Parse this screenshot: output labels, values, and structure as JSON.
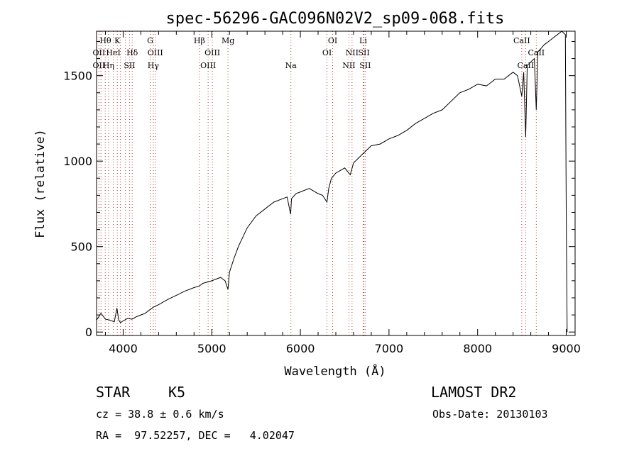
{
  "chart_data": {
    "type": "line",
    "title": "spec-56296-GAC096N02V2_sp09-068.fits",
    "xlabel": "Wavelength (Å)",
    "ylabel": "Flux (relative)",
    "xlim": [
      3700,
      9100
    ],
    "ylim": [
      -20,
      1760
    ],
    "xticks": [
      4000,
      5000,
      6000,
      7000,
      8000,
      9000
    ],
    "xtick_labels": [
      "4000",
      "5000",
      "6000",
      "7000",
      "8000",
      "9000"
    ],
    "yticks": [
      0,
      500,
      1000,
      1500
    ],
    "ytick_labels": [
      "0",
      "500",
      "1000",
      "1500"
    ],
    "series": [
      {
        "x": [
          3700,
          3750,
          3800,
          3850,
          3900,
          3930,
          3950,
          3970,
          4000,
          4050,
          4100,
          4150,
          4200,
          4250,
          4300,
          4340,
          4400,
          4500,
          4600,
          4700,
          4800,
          4861,
          4900,
          5000,
          5100,
          5150,
          5183,
          5200,
          5250,
          5300,
          5400,
          5500,
          5600,
          5700,
          5800,
          5850,
          5890,
          5900,
          5950,
          6000,
          6100,
          6200,
          6250,
          6300,
          6320,
          6350,
          6400,
          6500,
          6563,
          6600,
          6700,
          6800,
          6900,
          7000,
          7100,
          7200,
          7300,
          7400,
          7500,
          7600,
          7700,
          7800,
          7900,
          8000,
          8100,
          8200,
          8300,
          8400,
          8450,
          8498,
          8520,
          8542,
          8560,
          8600,
          8640,
          8662,
          8680,
          8700,
          8750,
          8800,
          8850,
          8900,
          8950,
          8990,
          9000,
          9010
        ],
        "y": [
          70,
          110,
          75,
          70,
          60,
          140,
          70,
          55,
          65,
          80,
          75,
          90,
          100,
          110,
          130,
          145,
          160,
          190,
          215,
          240,
          260,
          270,
          285,
          300,
          320,
          300,
          250,
          350,
          430,
          500,
          610,
          680,
          720,
          760,
          780,
          790,
          690,
          780,
          810,
          820,
          840,
          810,
          800,
          760,
          840,
          900,
          930,
          960,
          920,
          990,
          1040,
          1090,
          1100,
          1130,
          1150,
          1180,
          1220,
          1250,
          1280,
          1300,
          1350,
          1400,
          1420,
          1450,
          1440,
          1480,
          1480,
          1520,
          1500,
          1380,
          1520,
          1140,
          1560,
          1580,
          1600,
          1300,
          1640,
          1650,
          1680,
          1700,
          1720,
          1740,
          1760,
          1740,
          700,
          0
        ]
      }
    ],
    "line_markers": {
      "wavelengths": [
        3727,
        3750,
        3798,
        3835,
        3889,
        3934,
        3968,
        4026,
        4072,
        4102,
        4305,
        4340,
        4363,
        4861,
        4959,
        5007,
        5183,
        5893,
        6300,
        6364,
        6548,
        6583,
        6708,
        6717,
        6731,
        8498,
        8542,
        8662
      ],
      "labels": [
        {
          "text": "Hθ",
          "wl": 3800,
          "row": 0
        },
        {
          "text": "K",
          "wl": 3934,
          "row": 0
        },
        {
          "text": "OII",
          "wl": 3727,
          "row": 1
        },
        {
          "text": "HeI",
          "wl": 3889,
          "row": 1
        },
        {
          "text": "Hδ",
          "wl": 4102,
          "row": 1
        },
        {
          "text": "OII",
          "wl": 3727,
          "row": 2
        },
        {
          "text": "Hη",
          "wl": 3835,
          "row": 2
        },
        {
          "text": "SII",
          "wl": 4072,
          "row": 2
        },
        {
          "text": "G",
          "wl": 4305,
          "row": 0
        },
        {
          "text": "OIII",
          "wl": 4363,
          "row": 1
        },
        {
          "text": "Hγ",
          "wl": 4340,
          "row": 2
        },
        {
          "text": "Hβ",
          "wl": 4861,
          "row": 0
        },
        {
          "text": "OIII",
          "wl": 5007,
          "row": 1
        },
        {
          "text": "OIII",
          "wl": 4959,
          "row": 2
        },
        {
          "text": "Mg",
          "wl": 5183,
          "row": 0
        },
        {
          "text": "Na",
          "wl": 5893,
          "row": 2
        },
        {
          "text": "OI",
          "wl": 6364,
          "row": 0
        },
        {
          "text": "OI",
          "wl": 6300,
          "row": 1
        },
        {
          "text": "Li",
          "wl": 6708,
          "row": 0
        },
        {
          "text": "NII",
          "wl": 6583,
          "row": 1
        },
        {
          "text": "SII",
          "wl": 6717,
          "row": 1
        },
        {
          "text": "NII",
          "wl": 6548,
          "row": 2
        },
        {
          "text": "SII",
          "wl": 6731,
          "row": 2
        },
        {
          "text": "CaII",
          "wl": 8498,
          "row": 0
        },
        {
          "text": "CaII",
          "wl": 8662,
          "row": 1
        },
        {
          "text": "CaII",
          "wl": 8542,
          "row": 2
        }
      ]
    },
    "grid": false,
    "legend": "none"
  },
  "info": {
    "object_type": "STAR",
    "subclass": "K5",
    "survey": "LAMOST DR2",
    "cz": "cz = 38.8 ± 0.6 km/s",
    "obs_date": "Obs-Date: 20130103",
    "coords": "RA =  97.52257, DEC =   4.02047"
  }
}
